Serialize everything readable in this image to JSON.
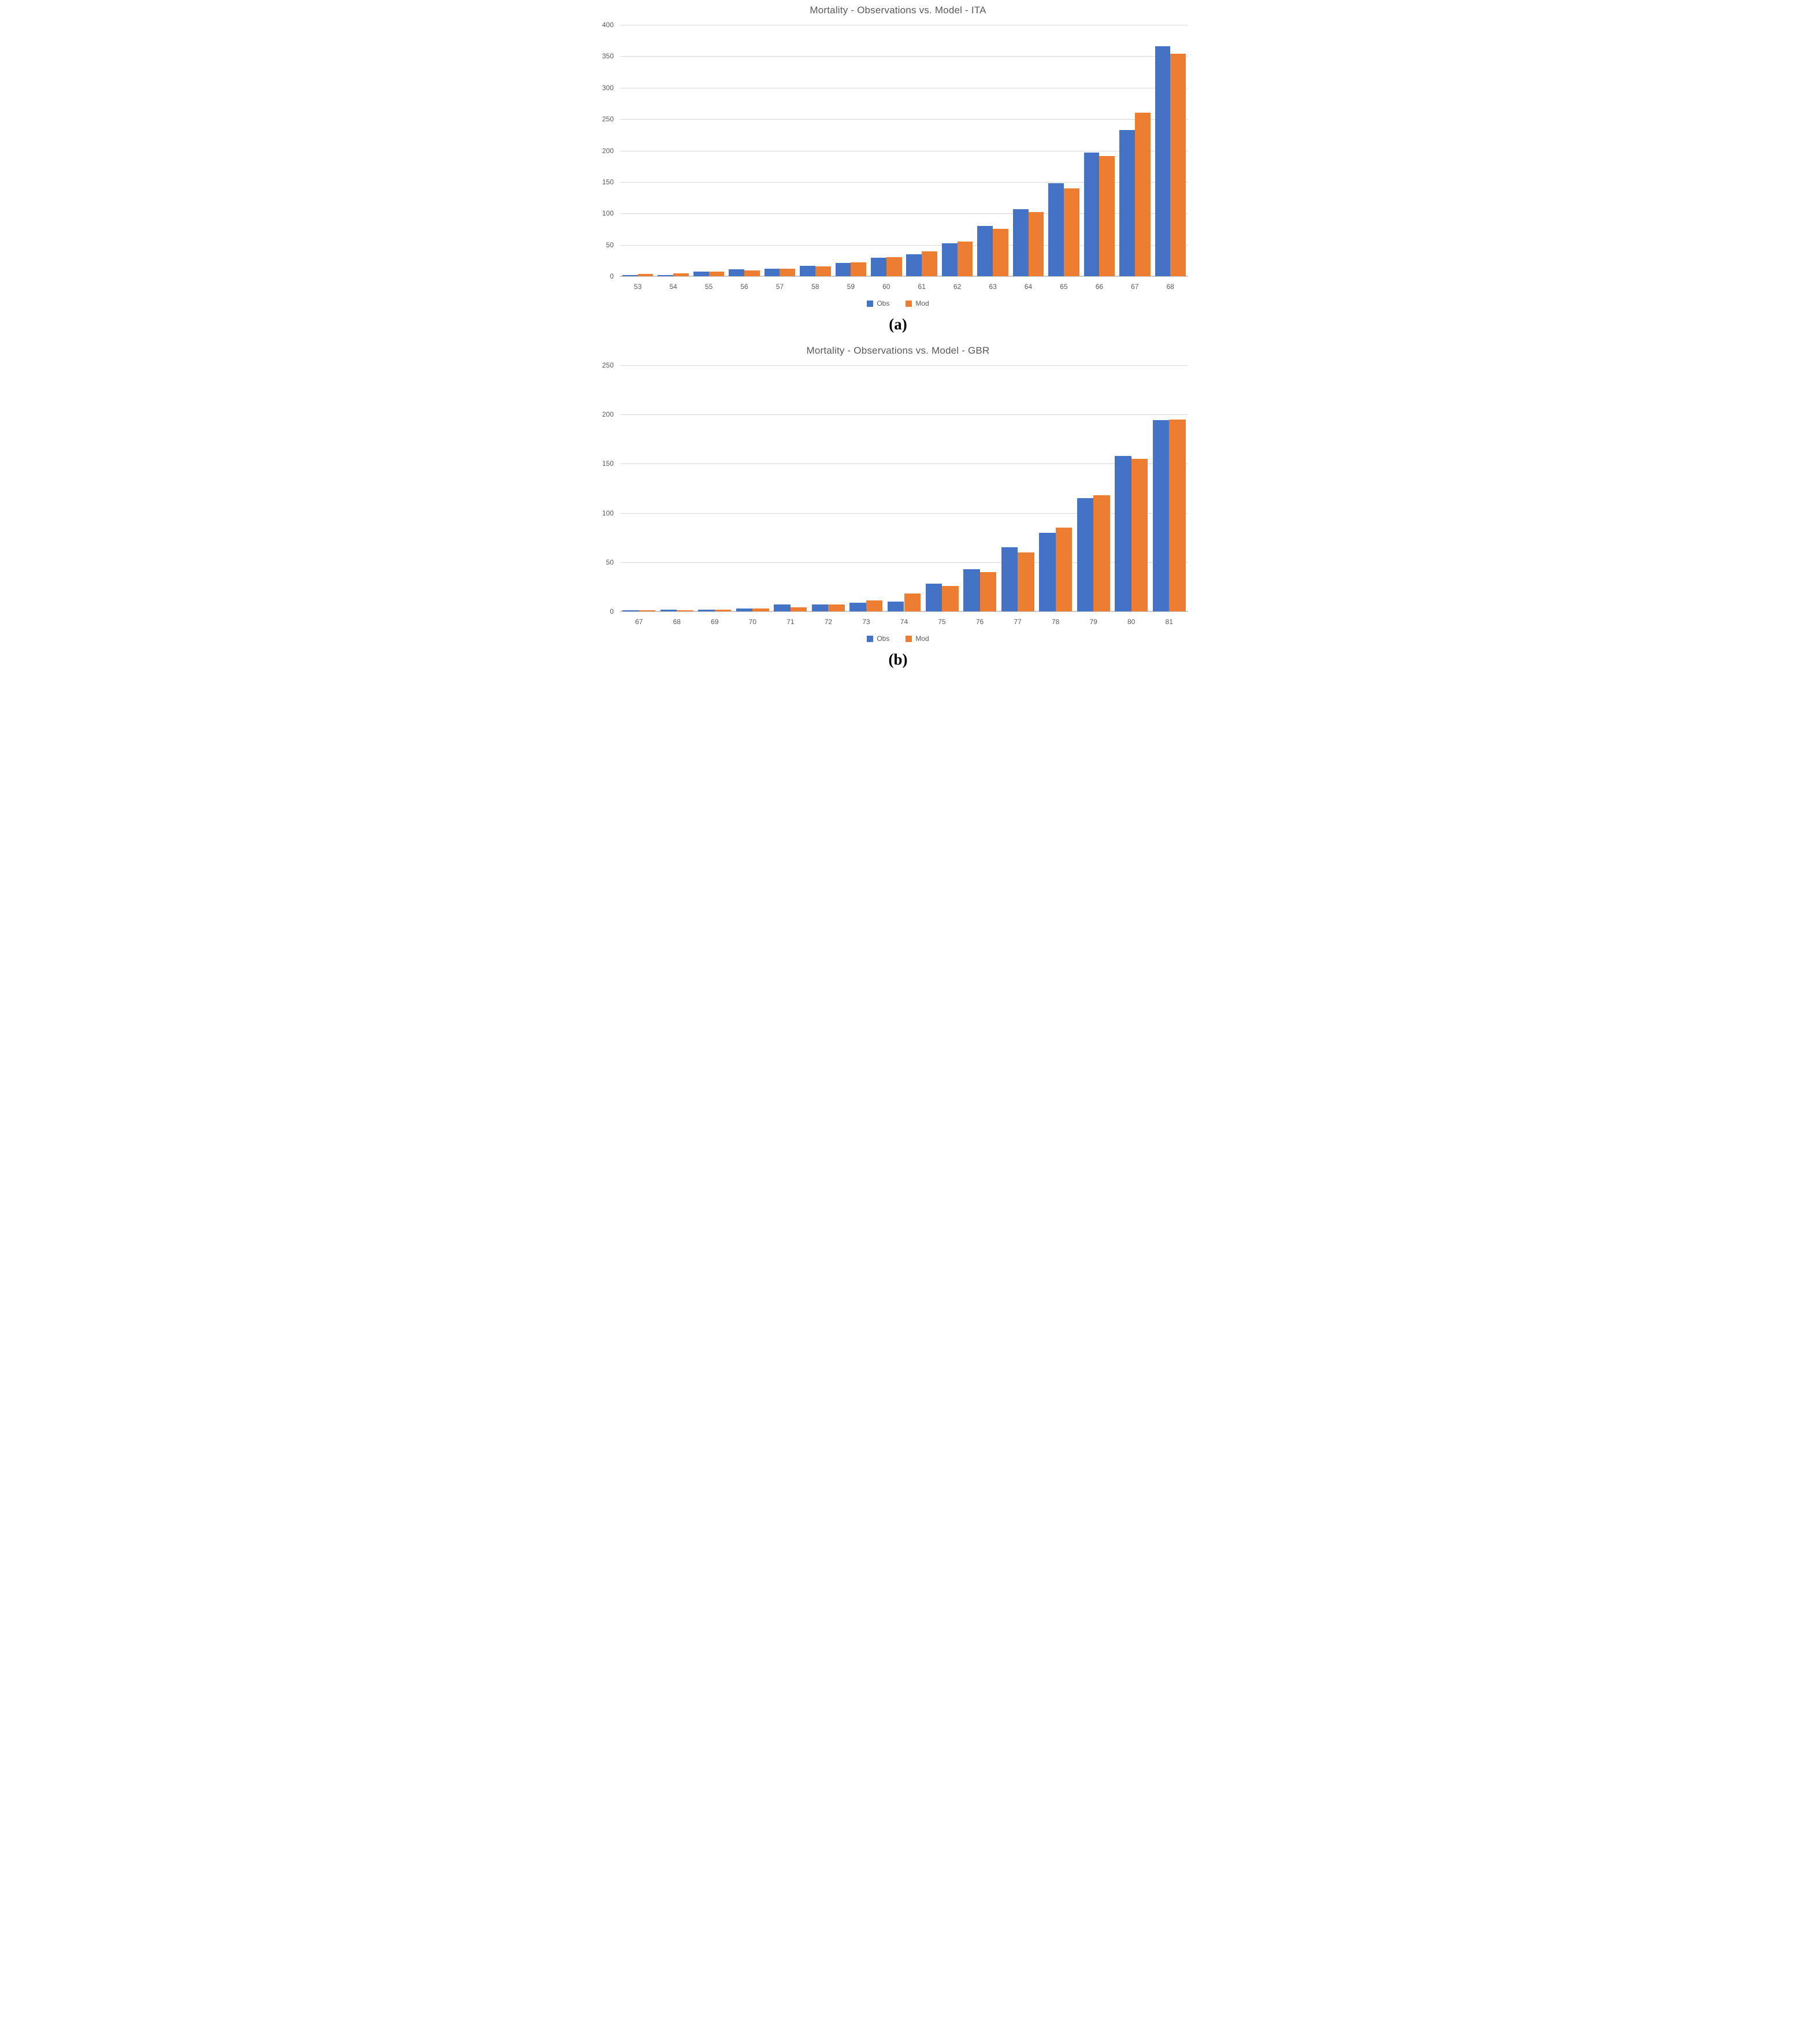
{
  "chart_data": [
    {
      "type": "bar",
      "title": "Mortality - Observations vs. Model - ITA",
      "caption": "(a)",
      "categories": [
        "53",
        "54",
        "55",
        "56",
        "57",
        "58",
        "59",
        "60",
        "61",
        "62",
        "63",
        "64",
        "65",
        "66",
        "67",
        "68"
      ],
      "series": [
        {
          "name": "Obs",
          "color": "#4472C4",
          "values": [
            2,
            2,
            7,
            11,
            12,
            17,
            21,
            29,
            35,
            52,
            80,
            107,
            148,
            197,
            233,
            366
          ]
        },
        {
          "name": "Mod",
          "color": "#ED7D31",
          "values": [
            4,
            5,
            7,
            9,
            12,
            16,
            22,
            30,
            40,
            55,
            75,
            102,
            140,
            191,
            260,
            354
          ]
        }
      ],
      "xlabel": "",
      "ylabel": "",
      "ylim": [
        0,
        400
      ],
      "yticks": [
        0,
        50,
        100,
        150,
        200,
        250,
        300,
        350,
        400
      ],
      "grid": true,
      "legend_position": "bottom"
    },
    {
      "type": "bar",
      "title": "Mortality - Observations vs. Model - GBR",
      "caption": "(b)",
      "categories": [
        "67",
        "68",
        "69",
        "70",
        "71",
        "72",
        "73",
        "74",
        "75",
        "76",
        "77",
        "78",
        "79",
        "80",
        "81"
      ],
      "series": [
        {
          "name": "Obs",
          "color": "#4472C4",
          "values": [
            1,
            2,
            2,
            3,
            7,
            7,
            9,
            10,
            28,
            43,
            65,
            80,
            115,
            158,
            194
          ]
        },
        {
          "name": "Mod",
          "color": "#ED7D31",
          "values": [
            1,
            1,
            2,
            3,
            4,
            7,
            11,
            18,
            26,
            40,
            60,
            85,
            118,
            155,
            195
          ]
        }
      ],
      "xlabel": "",
      "ylabel": "",
      "ylim": [
        0,
        250
      ],
      "yticks": [
        0,
        50,
        100,
        150,
        200,
        250
      ],
      "grid": true,
      "legend_position": "bottom"
    }
  ],
  "colors": {
    "obs": "#4472C4",
    "mod": "#ED7D31",
    "gridline": "#D9D9D9",
    "axis_text": "#595959",
    "title_text": "#595959"
  }
}
